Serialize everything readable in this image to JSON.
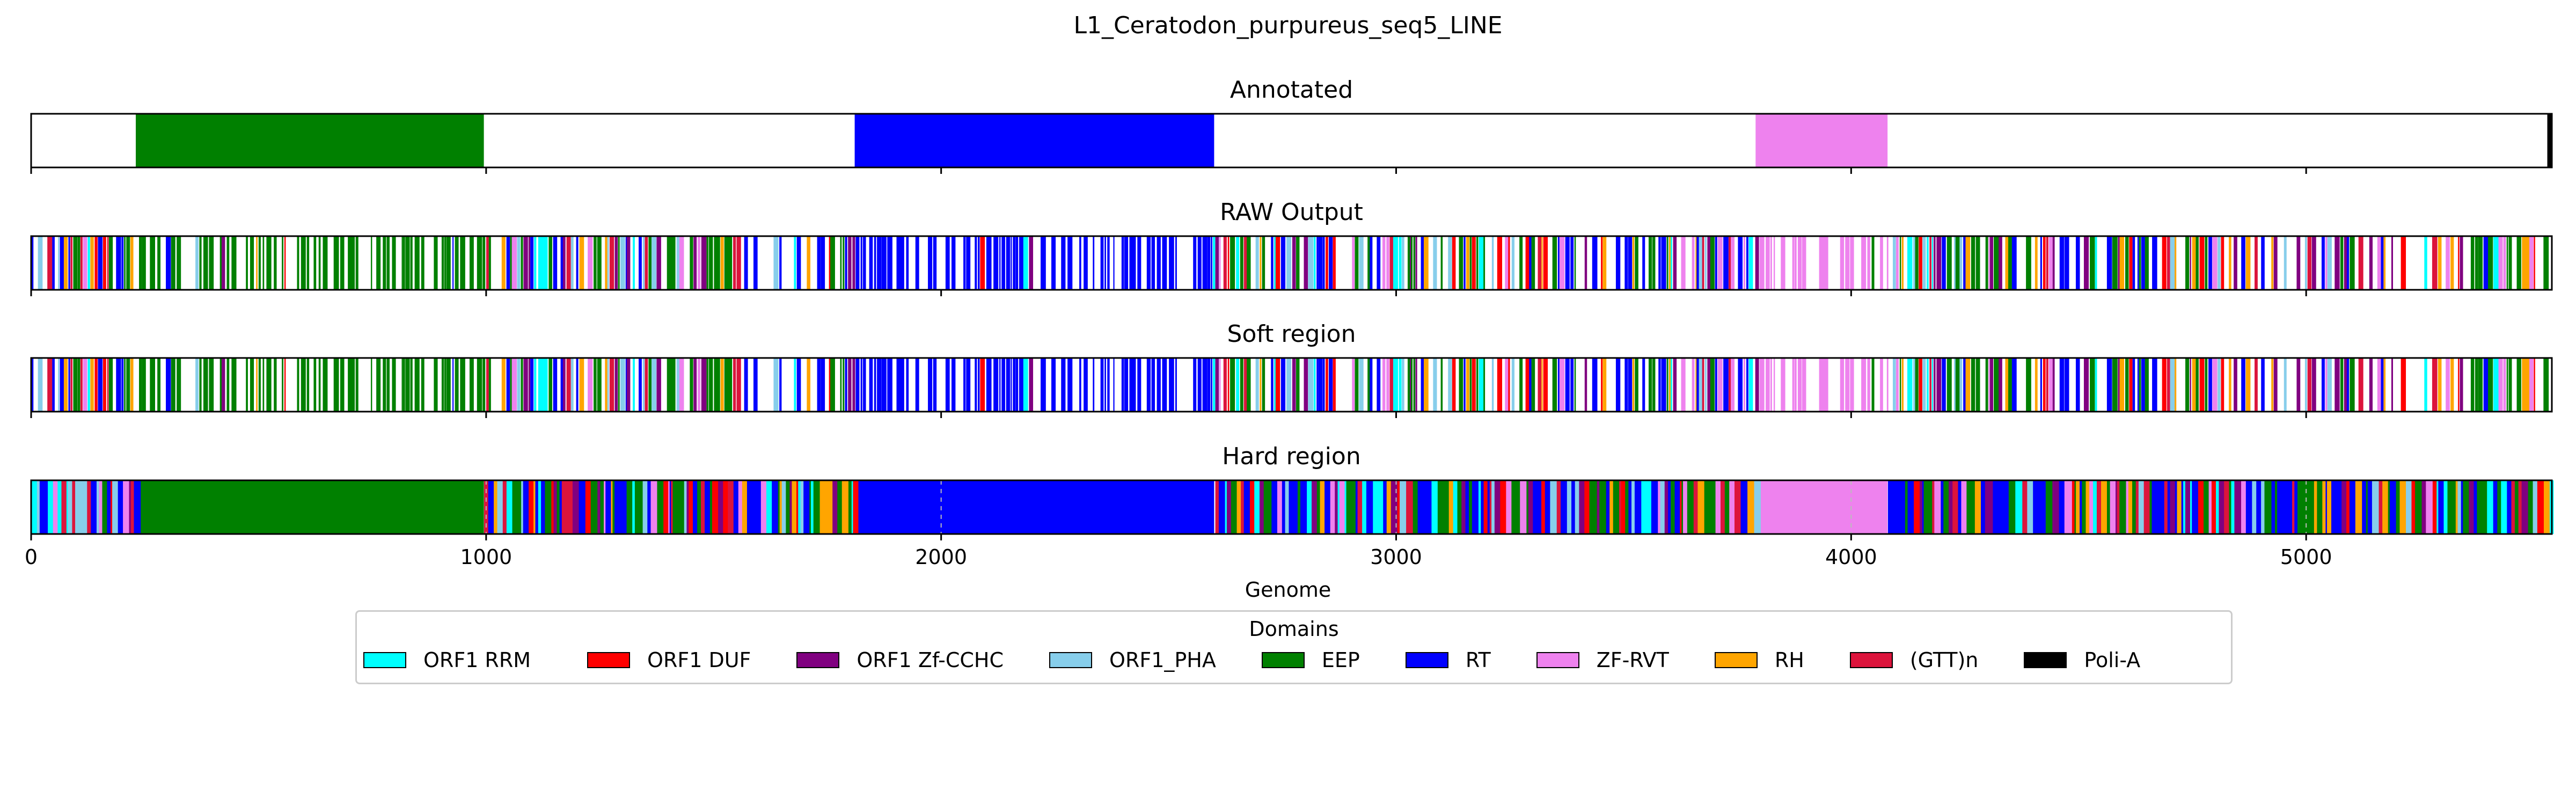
{
  "figure": {
    "title": "L1_Ceratodon_purpureus_seq5_LINE"
  },
  "chart_data": {
    "type": "bar",
    "title": "L1_Ceratodon_purpureus_seq5_LINE",
    "xlabel": "Genome",
    "xlim": [
      0,
      5540
    ],
    "xticks": [
      0,
      1000,
      2000,
      3000,
      4000,
      5000
    ],
    "panels": [
      {
        "title": "Annotated",
        "kind": "annotated"
      },
      {
        "title": "RAW Output",
        "kind": "raw"
      },
      {
        "title": "Soft region",
        "kind": "soft"
      },
      {
        "title": "Hard region",
        "kind": "hard"
      }
    ],
    "annotated_segments": [
      {
        "domain": "EEP",
        "start": 230,
        "end": 995
      },
      {
        "domain": "RT",
        "start": 1810,
        "end": 2600
      },
      {
        "domain": "ZF-RVT",
        "start": 3790,
        "end": 4080
      },
      {
        "domain": "Poli-A",
        "start": 5530,
        "end": 5540
      }
    ],
    "legend": {
      "title": "Domains",
      "items": [
        {
          "label": "ORF1 RRM",
          "color": "#00ffff"
        },
        {
          "label": "ORF1 DUF",
          "color": "#ff0000"
        },
        {
          "label": "ORF1 Zf-CCHC",
          "color": "#800080"
        },
        {
          "label": "ORF1_PHA",
          "color": "#87ceeb"
        },
        {
          "label": "EEP",
          "color": "#008000"
        },
        {
          "label": "RT",
          "color": "#0000ff"
        },
        {
          "label": "ZF-RVT",
          "color": "#ee82ee"
        },
        {
          "label": "RH",
          "color": "#ffa500"
        },
        {
          "label": "(GTT)n",
          "color": "#dc143c"
        },
        {
          "label": "Poli-A",
          "color": "#000000"
        }
      ]
    }
  }
}
